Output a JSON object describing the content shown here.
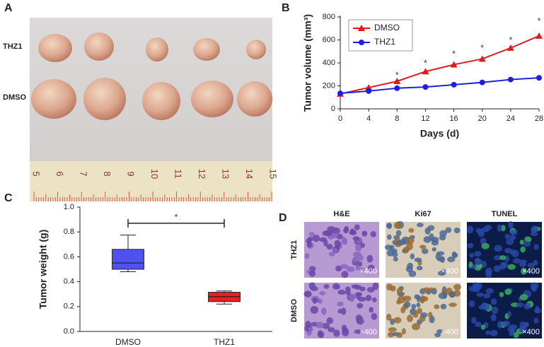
{
  "panel_a": {
    "letter": "A",
    "rows": [
      "THZ1",
      "DMSO"
    ],
    "ruler": [
      "5",
      "6",
      "7",
      "8",
      "9",
      "10",
      "11",
      "12",
      "13",
      "14",
      "15"
    ]
  },
  "chart_data": [
    {
      "type": "line",
      "letter": "B",
      "xlabel": "Days (d)",
      "ylabel": "Tumor volume (mm³)",
      "x": [
        0,
        4,
        8,
        12,
        16,
        20,
        24,
        28
      ],
      "series": [
        {
          "name": "DMSO",
          "color": "#e31a1c",
          "marker": "triangle",
          "values": [
            130,
            185,
            240,
            325,
            385,
            435,
            530,
            635
          ]
        },
        {
          "name": "THZ1",
          "color": "#1f1fe0",
          "marker": "circle",
          "values": [
            135,
            155,
            180,
            190,
            210,
            230,
            255,
            270
          ]
        }
      ],
      "xlim": [
        0,
        28
      ],
      "xticks": [
        0,
        4,
        8,
        12,
        16,
        20,
        24,
        28
      ],
      "ylim": [
        0,
        800
      ],
      "yticks": [
        0,
        200,
        400,
        600,
        800
      ],
      "legend": "upper left",
      "annotations": {
        "text": "*",
        "x": [
          8,
          12,
          16,
          20,
          24,
          28
        ],
        "y": [
          290,
          395,
          475,
          525,
          595,
          760
        ]
      }
    },
    {
      "type": "box",
      "letter": "C",
      "ylabel": "Tumor weight (g)",
      "categories": [
        "DMSO",
        "THZ1"
      ],
      "colors": [
        "#4f52ee",
        "#ee1c1c"
      ],
      "boxes": [
        {
          "min": 0.48,
          "q1": 0.5,
          "median": 0.55,
          "q3": 0.66,
          "max": 0.775
        },
        {
          "min": 0.22,
          "q1": 0.24,
          "median": 0.28,
          "q3": 0.315,
          "max": 0.325
        }
      ],
      "ylim": [
        0,
        1
      ],
      "yticks": [
        {
          "value": 0,
          "label": "0.0"
        },
        0.2,
        0.4,
        0.6,
        0.8,
        {
          "value": 1,
          "label": "1.0"
        }
      ],
      "annotation": {
        "text": "*",
        "y": 0.87
      }
    }
  ],
  "panel_d": {
    "letter": "D",
    "columns": [
      "H&E",
      "Ki67",
      "TUNEL"
    ],
    "rows": [
      "THZ1",
      "DMSO"
    ],
    "magnification": "×400"
  }
}
